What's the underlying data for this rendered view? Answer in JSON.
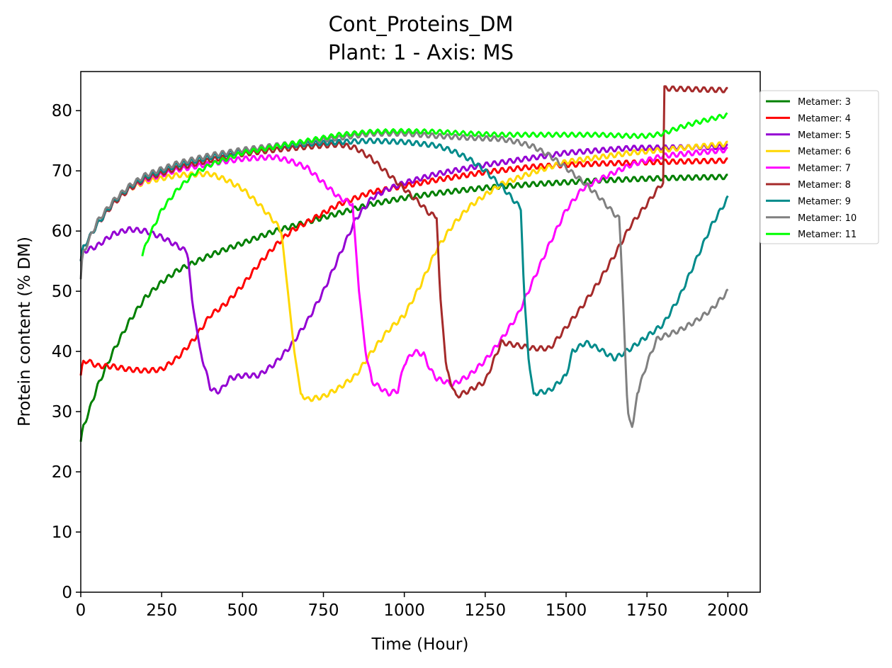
{
  "chart_data": {
    "type": "line",
    "title": "Cont_Proteins_DM",
    "subtitle": "Plant: 1 - Axis: MS",
    "xlabel": "Time (Hour)",
    "ylabel": "Protein content (% DM)",
    "xlim": [
      0,
      2100
    ],
    "ylim": [
      0,
      86.5
    ],
    "xticks": [
      0,
      250,
      500,
      750,
      1000,
      1250,
      1500,
      1750,
      2000
    ],
    "yticks": [
      0,
      10,
      20,
      30,
      40,
      50,
      60,
      70,
      80
    ],
    "grid": false,
    "legend_position": "right-outside-top",
    "series": [
      {
        "name": "Metamer: 3",
        "color": "#008000",
        "wobble": 0.4,
        "points": [
          [
            0,
            25
          ],
          [
            5,
            27
          ],
          [
            25,
            30
          ],
          [
            50,
            34
          ],
          [
            100,
            40
          ],
          [
            150,
            45
          ],
          [
            200,
            49
          ],
          [
            250,
            51.5
          ],
          [
            300,
            53.5
          ],
          [
            400,
            56
          ],
          [
            500,
            58
          ],
          [
            600,
            60
          ],
          [
            700,
            61.5
          ],
          [
            800,
            63
          ],
          [
            900,
            64.5
          ],
          [
            1000,
            65.5
          ],
          [
            1100,
            66.3
          ],
          [
            1250,
            67.2
          ],
          [
            1400,
            67.8
          ],
          [
            1500,
            68.1
          ],
          [
            1600,
            68.4
          ],
          [
            1800,
            68.8
          ],
          [
            2000,
            69
          ]
        ]
      },
      {
        "name": "Metamer: 4",
        "color": "#ff0000",
        "wobble": 0.4,
        "points": [
          [
            0,
            36
          ],
          [
            5,
            38
          ],
          [
            20,
            38.5
          ],
          [
            50,
            37.6
          ],
          [
            100,
            37.5
          ],
          [
            150,
            37
          ],
          [
            200,
            36.8
          ],
          [
            250,
            37
          ],
          [
            300,
            39
          ],
          [
            350,
            42
          ],
          [
            400,
            46
          ],
          [
            450,
            48
          ],
          [
            500,
            51
          ],
          [
            550,
            54.5
          ],
          [
            600,
            57.5
          ],
          [
            650,
            60
          ],
          [
            700,
            61.5
          ],
          [
            750,
            63
          ],
          [
            800,
            64.5
          ],
          [
            900,
            66.5
          ],
          [
            1000,
            67.5
          ],
          [
            1100,
            68.5
          ],
          [
            1250,
            69.8
          ],
          [
            1400,
            70.7
          ],
          [
            1500,
            71
          ],
          [
            1600,
            71.2
          ],
          [
            1800,
            71.5
          ],
          [
            2000,
            71.7
          ]
        ]
      },
      {
        "name": "Metamer: 5",
        "color": "#9400d3",
        "wobble": 0.4,
        "points": [
          [
            0,
            55
          ],
          [
            5,
            56.5
          ],
          [
            50,
            57.5
          ],
          [
            100,
            59.5
          ],
          [
            150,
            60.3
          ],
          [
            200,
            60
          ],
          [
            250,
            59
          ],
          [
            300,
            57.5
          ],
          [
            330,
            56.5
          ],
          [
            345,
            48
          ],
          [
            370,
            40
          ],
          [
            400,
            34
          ],
          [
            420,
            33.2
          ],
          [
            440,
            34
          ],
          [
            460,
            35.5
          ],
          [
            500,
            36
          ],
          [
            550,
            36
          ],
          [
            600,
            38
          ],
          [
            650,
            41
          ],
          [
            700,
            45
          ],
          [
            750,
            50
          ],
          [
            800,
            56
          ],
          [
            850,
            62
          ],
          [
            900,
            65.5
          ],
          [
            950,
            67
          ],
          [
            1000,
            68
          ],
          [
            1100,
            69.5
          ],
          [
            1250,
            71
          ],
          [
            1400,
            72.2
          ],
          [
            1500,
            73
          ],
          [
            1700,
            73.8
          ],
          [
            2000,
            74
          ]
        ]
      },
      {
        "name": "Metamer: 6",
        "color": "#ffd700",
        "wobble": 0.4,
        "points": [
          [
            0,
            55
          ],
          [
            5,
            57
          ],
          [
            50,
            61
          ],
          [
            100,
            64.5
          ],
          [
            150,
            67
          ],
          [
            200,
            68.2
          ],
          [
            300,
            69.3
          ],
          [
            400,
            69.5
          ],
          [
            450,
            68.5
          ],
          [
            500,
            67
          ],
          [
            550,
            64.5
          ],
          [
            600,
            61.5
          ],
          [
            620,
            60
          ],
          [
            640,
            50
          ],
          [
            660,
            40
          ],
          [
            680,
            33
          ],
          [
            700,
            32
          ],
          [
            750,
            32.5
          ],
          [
            800,
            34
          ],
          [
            850,
            36
          ],
          [
            900,
            40
          ],
          [
            950,
            43.5
          ],
          [
            1000,
            46
          ],
          [
            1050,
            51
          ],
          [
            1100,
            57
          ],
          [
            1150,
            61
          ],
          [
            1200,
            64
          ],
          [
            1250,
            66
          ],
          [
            1300,
            67.8
          ],
          [
            1400,
            69.8
          ],
          [
            1500,
            71.5
          ],
          [
            1700,
            73
          ],
          [
            2000,
            74.5
          ]
        ]
      },
      {
        "name": "Metamer: 7",
        "color": "#ff00ff",
        "wobble": 0.4,
        "points": [
          [
            0,
            55
          ],
          [
            5,
            57
          ],
          [
            50,
            61
          ],
          [
            100,
            64.5
          ],
          [
            150,
            67
          ],
          [
            200,
            68.5
          ],
          [
            300,
            70.2
          ],
          [
            400,
            71.2
          ],
          [
            500,
            72
          ],
          [
            600,
            72.3
          ],
          [
            650,
            71.6
          ],
          [
            700,
            70.5
          ],
          [
            750,
            68
          ],
          [
            800,
            65.5
          ],
          [
            840,
            64.5
          ],
          [
            860,
            50
          ],
          [
            880,
            40
          ],
          [
            900,
            35
          ],
          [
            950,
            33
          ],
          [
            980,
            33.5
          ],
          [
            1000,
            38
          ],
          [
            1030,
            40
          ],
          [
            1060,
            39.5
          ],
          [
            1080,
            37
          ],
          [
            1100,
            35.5
          ],
          [
            1150,
            34.5
          ],
          [
            1200,
            36
          ],
          [
            1250,
            38.5
          ],
          [
            1300,
            42
          ],
          [
            1350,
            46
          ],
          [
            1400,
            52
          ],
          [
            1450,
            58
          ],
          [
            1500,
            63.5
          ],
          [
            1550,
            67
          ],
          [
            1600,
            68.5
          ],
          [
            1700,
            71
          ],
          [
            1800,
            72.5
          ],
          [
            2000,
            73.5
          ]
        ]
      },
      {
        "name": "Metamer: 8",
        "color": "#a52a2a",
        "wobble": 0.4,
        "points": [
          [
            0,
            55
          ],
          [
            5,
            57
          ],
          [
            50,
            61
          ],
          [
            100,
            64.5
          ],
          [
            150,
            67
          ],
          [
            200,
            68.7
          ],
          [
            300,
            70.5
          ],
          [
            400,
            71.8
          ],
          [
            500,
            72.8
          ],
          [
            600,
            73.5
          ],
          [
            700,
            74
          ],
          [
            800,
            74.4
          ],
          [
            850,
            73.8
          ],
          [
            900,
            72
          ],
          [
            950,
            69.5
          ],
          [
            1000,
            67
          ],
          [
            1050,
            64.5
          ],
          [
            1080,
            62.8
          ],
          [
            1100,
            62.5
          ],
          [
            1110,
            50
          ],
          [
            1130,
            37
          ],
          [
            1160,
            32.5
          ],
          [
            1200,
            33.5
          ],
          [
            1250,
            35
          ],
          [
            1280,
            39
          ],
          [
            1300,
            41.5
          ],
          [
            1350,
            41
          ],
          [
            1400,
            40.5
          ],
          [
            1450,
            40.5
          ],
          [
            1500,
            44
          ],
          [
            1550,
            47.5
          ],
          [
            1600,
            51.5
          ],
          [
            1650,
            56
          ],
          [
            1700,
            61
          ],
          [
            1750,
            64.5
          ],
          [
            1790,
            67.5
          ],
          [
            1800,
            68
          ],
          [
            1801,
            83.7
          ],
          [
            2000,
            83.4
          ]
        ]
      },
      {
        "name": "Metamer: 9",
        "color": "#008b8b",
        "wobble": 0.4,
        "points": [
          [
            0,
            55
          ],
          [
            5,
            57
          ],
          [
            50,
            61
          ],
          [
            100,
            64.8
          ],
          [
            150,
            67.3
          ],
          [
            200,
            69
          ],
          [
            300,
            71
          ],
          [
            400,
            72.3
          ],
          [
            500,
            73.3
          ],
          [
            600,
            74
          ],
          [
            700,
            74.5
          ],
          [
            800,
            74.8
          ],
          [
            900,
            75
          ],
          [
            1000,
            74.8
          ],
          [
            1100,
            74.2
          ],
          [
            1150,
            73.3
          ],
          [
            1200,
            72
          ],
          [
            1250,
            70
          ],
          [
            1300,
            67.5
          ],
          [
            1340,
            65
          ],
          [
            1360,
            63.8
          ],
          [
            1370,
            50
          ],
          [
            1385,
            38
          ],
          [
            1400,
            33
          ],
          [
            1450,
            33.5
          ],
          [
            1500,
            36
          ],
          [
            1520,
            40
          ],
          [
            1560,
            41.5
          ],
          [
            1600,
            40.5
          ],
          [
            1650,
            38.8
          ],
          [
            1700,
            40.5
          ],
          [
            1750,
            42.5
          ],
          [
            1800,
            44.5
          ],
          [
            1850,
            49
          ],
          [
            1900,
            55
          ],
          [
            1950,
            61
          ],
          [
            2000,
            65.5
          ]
        ]
      },
      {
        "name": "Metamer: 10",
        "color": "#808080",
        "wobble": 0.4,
        "points": [
          [
            0,
            52
          ],
          [
            5,
            56
          ],
          [
            50,
            61.5
          ],
          [
            100,
            65
          ],
          [
            150,
            67.5
          ],
          [
            200,
            69.3
          ],
          [
            300,
            71.3
          ],
          [
            400,
            72.6
          ],
          [
            500,
            73.5
          ],
          [
            600,
            74.2
          ],
          [
            700,
            74.8
          ],
          [
            800,
            75.5
          ],
          [
            900,
            76.2
          ],
          [
            1000,
            76.2
          ],
          [
            1100,
            75.8
          ],
          [
            1200,
            75.5
          ],
          [
            1300,
            75.3
          ],
          [
            1350,
            74.8
          ],
          [
            1400,
            74
          ],
          [
            1450,
            72.5
          ],
          [
            1500,
            70.5
          ],
          [
            1550,
            68.3
          ],
          [
            1600,
            65.8
          ],
          [
            1650,
            62.8
          ],
          [
            1665,
            62
          ],
          [
            1675,
            50
          ],
          [
            1690,
            30
          ],
          [
            1700,
            28.5
          ],
          [
            1705,
            27.2
          ],
          [
            1720,
            33
          ],
          [
            1750,
            38
          ],
          [
            1780,
            42
          ],
          [
            1800,
            42.5
          ],
          [
            1850,
            43.5
          ],
          [
            1900,
            45
          ],
          [
            1950,
            47
          ],
          [
            2000,
            50
          ]
        ]
      },
      {
        "name": "Metamer: 11",
        "color": "#00ff00",
        "wobble": 0.35,
        "points": [
          [
            190,
            56
          ],
          [
            210,
            59
          ],
          [
            250,
            63.5
          ],
          [
            300,
            67
          ],
          [
            350,
            69.5
          ],
          [
            400,
            71
          ],
          [
            500,
            73
          ],
          [
            600,
            74
          ],
          [
            700,
            75
          ],
          [
            800,
            76
          ],
          [
            900,
            76.5
          ],
          [
            1000,
            76.6
          ],
          [
            1100,
            76.5
          ],
          [
            1200,
            76.2
          ],
          [
            1300,
            76
          ],
          [
            1400,
            76
          ],
          [
            1500,
            76
          ],
          [
            1600,
            76
          ],
          [
            1700,
            75.8
          ],
          [
            1750,
            75.8
          ],
          [
            1800,
            76.2
          ],
          [
            1850,
            77.2
          ],
          [
            1900,
            78
          ],
          [
            2000,
            79.3
          ]
        ]
      }
    ]
  }
}
